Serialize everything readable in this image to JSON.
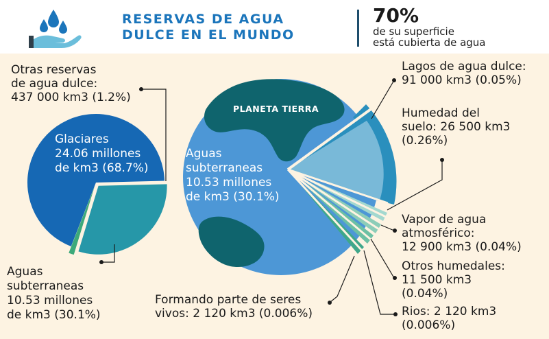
{
  "header": {
    "title_lines": [
      "RESERVAS DE AGUA",
      "DULCE EN EL MUNDO"
    ],
    "stat_value": "70%",
    "stat_lines": [
      "de su superficie",
      "está cubierta de agua"
    ],
    "icon": "water-drops-hand-icon"
  },
  "planet_label": "PLANETA TIERRA",
  "labels": {
    "otras_reservas": [
      "Otras reservas",
      "de agua dulce:",
      "437 000 km3 (1.2%)"
    ],
    "glaciares": [
      "Glaciares",
      "24.06 millones",
      "de km3 (68.7%)"
    ],
    "aguas_subt_left": [
      "Aguas",
      "subterraneas",
      "10.53 millones",
      "de km3 (30.1%)"
    ],
    "aguas_subt_right": [
      "Aguas",
      "subterraneas",
      "10.53 millones",
      "de km3 (30.1%)"
    ],
    "lagos": [
      "Lagos de agua dulce:",
      "91 000 km3 (0.05%)"
    ],
    "humedad": [
      "Humedad del",
      "suelo: 26 500 km3",
      "(0.26%)"
    ],
    "vapor": [
      "Vapor de agua",
      "atmosférico:",
      "12 900 km3 (0.04%)"
    ],
    "otros_humedales": [
      "Otros humedales:",
      "11 500 km3",
      "(0.04%)"
    ],
    "rios": [
      "Rios: 2 120 km3",
      "(0.006%)"
    ],
    "seres_vivos": [
      "Formando parte de seres",
      "vivos: 2 120 km3 (0.006%)"
    ]
  },
  "colors": {
    "background": "#fdf3e2",
    "title": "#1b75bb",
    "glaciares": "#1668b4",
    "aguas_subterraneas": "#2697a8",
    "otras_reservas": "#3ca97a",
    "earth_ocean": "#4d97d6",
    "earth_land": "#0f646d",
    "earth_ring": "#2a8fbd",
    "humedad_wedge": "#79b9d8",
    "lagos_wedge": "#2690b8"
  },
  "chart_data": [
    {
      "type": "pie",
      "title": "",
      "slices": [
        {
          "label": "Glaciares",
          "value": 68.7,
          "unit": "%",
          "amount": "24.06 millones de km3"
        },
        {
          "label": "Aguas subterraneas",
          "value": 30.1,
          "unit": "%",
          "amount": "10.53 millones de km3"
        },
        {
          "label": "Otras reservas de agua dulce",
          "value": 1.2,
          "unit": "%",
          "amount": "437 000 km3"
        }
      ]
    },
    {
      "type": "pie",
      "title": "PLANETA TIERRA",
      "slices": [
        {
          "label": "Aguas subterraneas",
          "value": 30.1,
          "unit": "%",
          "amount": "10.53 millones de km3"
        },
        {
          "label": "Lagos de agua dulce",
          "value": 0.05,
          "unit": "%",
          "amount": "91 000 km3"
        },
        {
          "label": "Humedad del suelo",
          "value": 0.26,
          "unit": "%",
          "amount": "26 500 km3"
        },
        {
          "label": "Vapor de agua atmosférico",
          "value": 0.04,
          "unit": "%",
          "amount": "12 900 km3"
        },
        {
          "label": "Otros humedales",
          "value": 0.04,
          "unit": "%",
          "amount": "11 500 km3"
        },
        {
          "label": "Rios",
          "value": 0.006,
          "unit": "%",
          "amount": "2 120 km3"
        },
        {
          "label": "Formando parte de seres vivos",
          "value": 0.006,
          "unit": "%",
          "amount": "2 120 km3"
        }
      ]
    }
  ]
}
